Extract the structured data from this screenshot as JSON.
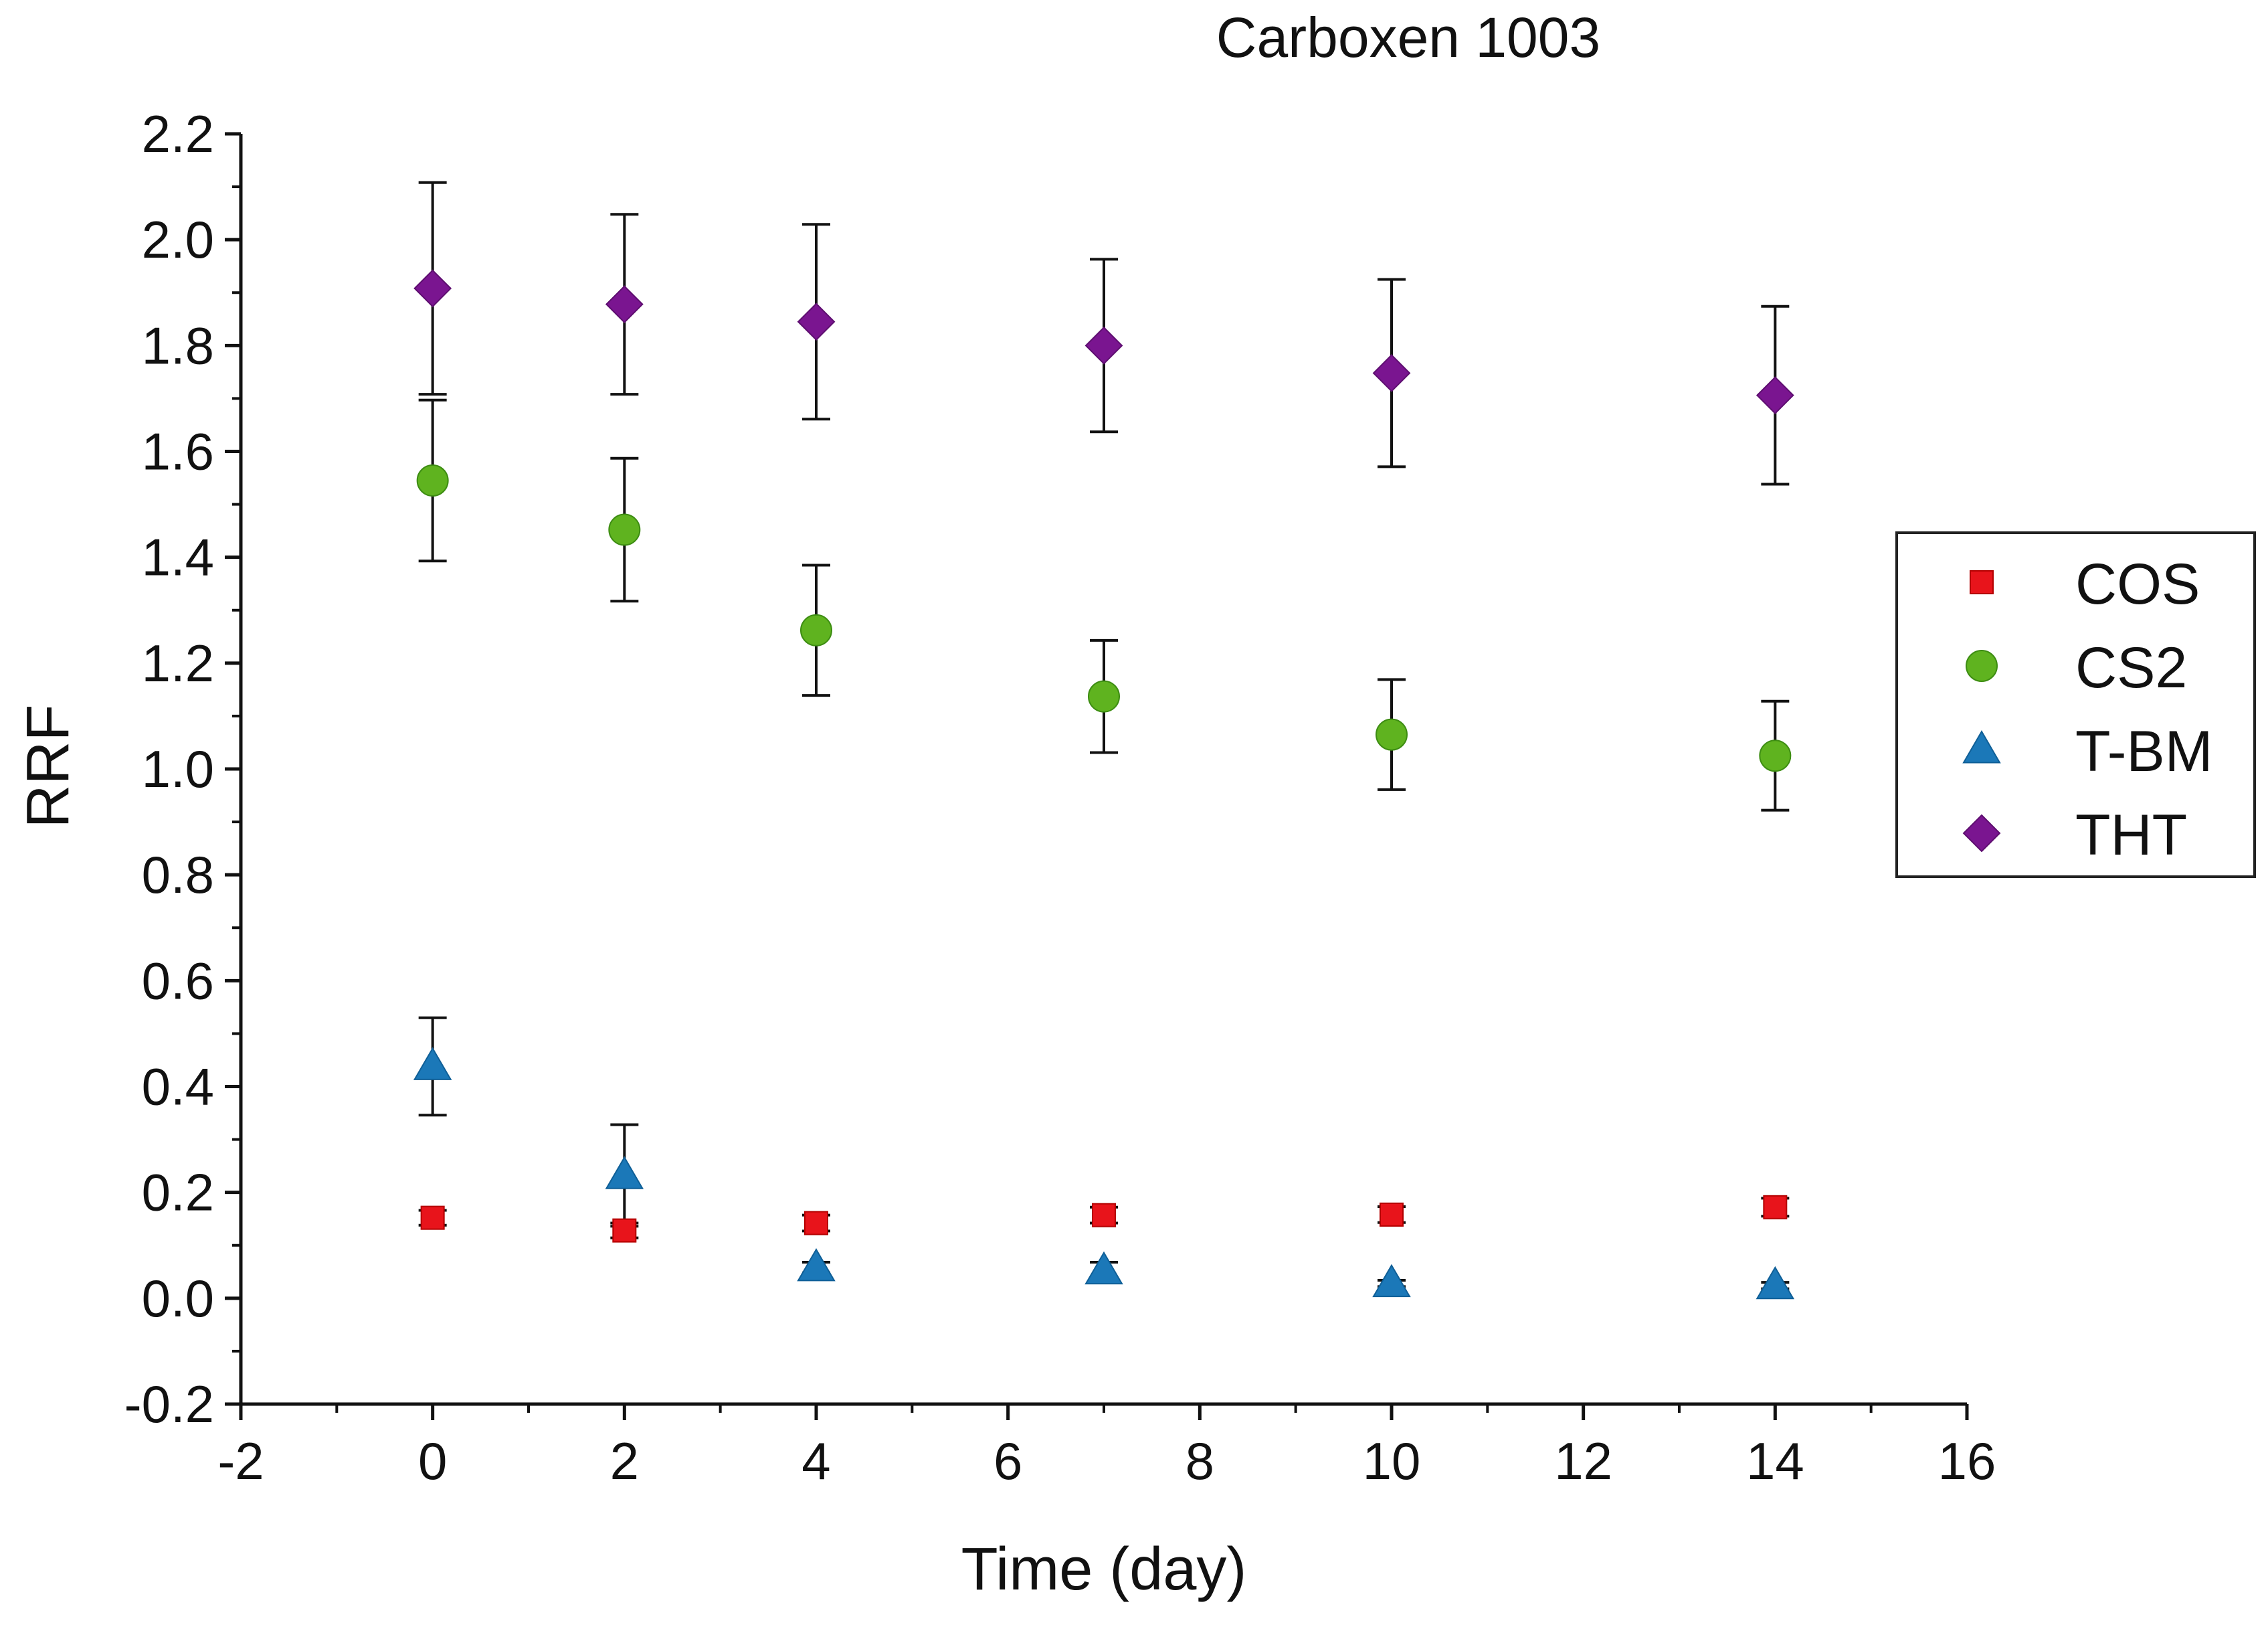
{
  "chart_data": {
    "type": "scatter",
    "title": "Carboxen 1003",
    "xlabel": "Time (day)",
    "ylabel": "RRF",
    "xlim": [
      -2,
      16
    ],
    "ylim": [
      -0.2,
      2.2
    ],
    "x_ticks": [
      "-2",
      "0",
      "2",
      "4",
      "6",
      "8",
      "10",
      "12",
      "14",
      "16"
    ],
    "y_ticks": [
      "-0.2",
      "0.0",
      "0.2",
      "0.4",
      "0.6",
      "0.8",
      "1.0",
      "1.2",
      "1.4",
      "1.6",
      "1.8",
      "2.0",
      "2.2"
    ],
    "x_tick_values": [
      -2,
      0,
      2,
      4,
      6,
      8,
      10,
      12,
      14,
      16
    ],
    "y_tick_values": [
      -0.2,
      0.0,
      0.2,
      0.4,
      0.6,
      0.8,
      1.0,
      1.2,
      1.4,
      1.6,
      1.8,
      2.0,
      2.2
    ],
    "legend_position": "right",
    "grid": false,
    "x": [
      0,
      2,
      4,
      7,
      10,
      14
    ],
    "series": [
      {
        "name": "COS",
        "marker": "square",
        "color": "#e8141b",
        "values": [
          0.152,
          0.128,
          0.142,
          0.157,
          0.158,
          0.172
        ],
        "errors": [
          0.014,
          0.014,
          0.015,
          0.015,
          0.015,
          0.017
        ]
      },
      {
        "name": "CS2",
        "marker": "circle",
        "color": "#5fb31f",
        "values": [
          1.545,
          1.452,
          1.262,
          1.137,
          1.065,
          1.025
        ],
        "errors": [
          0.152,
          0.135,
          0.123,
          0.106,
          0.104,
          0.103
        ]
      },
      {
        "name": "T-BM",
        "marker": "triangle",
        "color": "#1b78b8",
        "values": [
          0.438,
          0.232,
          0.058,
          0.052,
          0.028,
          0.024
        ],
        "errors": [
          0.092,
          0.096,
          0.01,
          0.016,
          0.006,
          0.006
        ]
      },
      {
        "name": "THT",
        "marker": "diamond",
        "color": "#7a1590",
        "values": [
          1.908,
          1.878,
          1.845,
          1.8,
          1.748,
          1.706
        ],
        "errors": [
          0.2,
          0.17,
          0.184,
          0.163,
          0.177,
          0.168
        ]
      }
    ]
  }
}
